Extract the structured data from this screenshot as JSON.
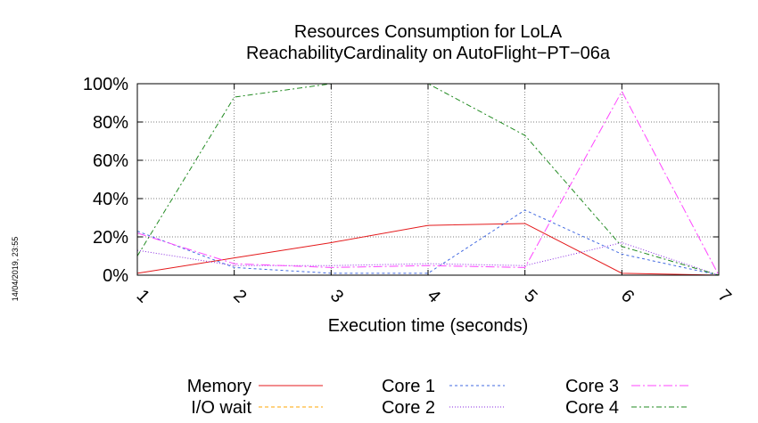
{
  "chart_data": {
    "type": "line",
    "title": [
      "Resources Consumption for LoLA",
      "ReachabilityCardinality on AutoFlight−PT−06a"
    ],
    "xlabel": "Execution time (seconds)",
    "ylabel": "",
    "timestamp": "14/04/2019, 23:55",
    "xlim": [
      1,
      7
    ],
    "ylim": [
      0,
      100
    ],
    "x_ticks": [
      "1",
      "2",
      "3",
      "4",
      "5",
      "6",
      "7"
    ],
    "y_ticks": [
      "0%",
      "20%",
      "40%",
      "60%",
      "80%",
      "100%"
    ],
    "grid": true,
    "legend_position": "bottom",
    "series": [
      {
        "name": "Memory",
        "color": "#e41a1c",
        "dash": "",
        "x": [
          1,
          2,
          3,
          4,
          5,
          6,
          7
        ],
        "y": [
          1,
          9,
          17,
          26,
          27,
          1,
          0
        ]
      },
      {
        "name": "I/O wait",
        "color": "#ffa500",
        "dash": "4,3",
        "x": [
          1,
          2,
          3,
          4,
          5,
          6,
          7
        ],
        "y": [
          0,
          0,
          0,
          0,
          0,
          0,
          0
        ]
      },
      {
        "name": "Core 1",
        "color": "#4169e1",
        "dash": "3,3",
        "x": [
          1,
          2,
          3,
          4,
          5,
          6,
          7
        ],
        "y": [
          23,
          4,
          1,
          1,
          34,
          11,
          0
        ]
      },
      {
        "name": "Core 2",
        "color": "#8a2be2",
        "dash": "1,2",
        "x": [
          1,
          2,
          3,
          4,
          5,
          6,
          7
        ],
        "y": [
          13,
          5,
          5,
          6,
          5,
          17,
          0
        ]
      },
      {
        "name": "Core 3",
        "color": "#ff44ff",
        "dash": "10,3,2,3",
        "x": [
          1,
          2,
          3,
          4,
          5,
          6,
          7
        ],
        "y": [
          22,
          6,
          4,
          5,
          4,
          96,
          0
        ]
      },
      {
        "name": "Core 4",
        "color": "#228b22",
        "dash": "6,3,2,3",
        "x": [
          1,
          2,
          3,
          4,
          5,
          6,
          7
        ],
        "y": [
          10,
          93,
          100,
          100,
          73,
          15,
          0
        ]
      }
    ]
  }
}
